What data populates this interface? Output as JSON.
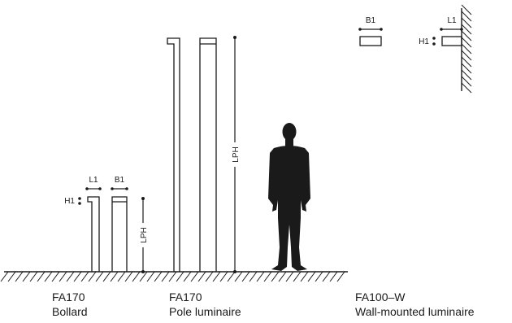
{
  "dimensions": {
    "length": "L1",
    "width": "B1",
    "height": "H1",
    "light_point_height": "LPH"
  },
  "products": [
    {
      "model": "FA170",
      "type": "Bollard"
    },
    {
      "model": "FA170",
      "type": "Pole luminaire"
    },
    {
      "model": "FA100–W",
      "type": "Wall-mounted luminaire"
    }
  ],
  "colors": {
    "line": "#1a1a1a",
    "silhouette": "#1a1a1a"
  }
}
